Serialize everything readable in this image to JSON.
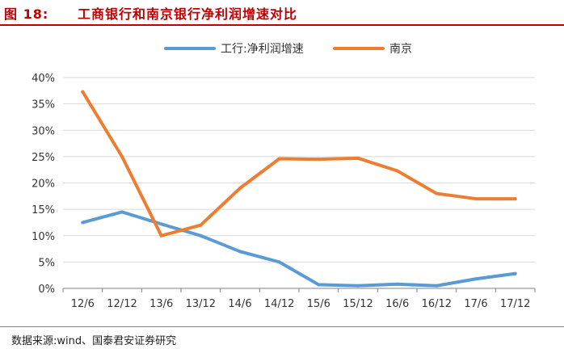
{
  "header": {
    "figure_label": "图 18:",
    "title": "工商银行和南京银行净利润增速对比"
  },
  "footer": {
    "source": "数据来源:wind、国泰君安证券研究"
  },
  "chart_data": {
    "type": "line",
    "title": "",
    "xlabel": "",
    "ylabel": "",
    "categories": [
      "12/6",
      "12/12",
      "13/6",
      "13/12",
      "14/6",
      "14/12",
      "15/6",
      "15/12",
      "16/6",
      "16/12",
      "17/6",
      "17/12"
    ],
    "y_ticks": [
      "0%",
      "5%",
      "10%",
      "15%",
      "20%",
      "25%",
      "30%",
      "35%",
      "40%"
    ],
    "ylim": [
      0,
      40
    ],
    "grid": true,
    "legend_position": "top",
    "series": [
      {
        "name": "工行:净利润增速",
        "color": "#5b9bd5",
        "values": [
          12.5,
          14.5,
          12.2,
          10.0,
          7.0,
          5.0,
          0.7,
          0.5,
          0.8,
          0.5,
          1.8,
          2.8
        ]
      },
      {
        "name": "南京",
        "color": "#ed7d31",
        "values": [
          37.3,
          25.0,
          10.0,
          12.0,
          19.0,
          24.6,
          24.5,
          24.7,
          22.3,
          18.0,
          17.0,
          17.0
        ]
      }
    ]
  }
}
